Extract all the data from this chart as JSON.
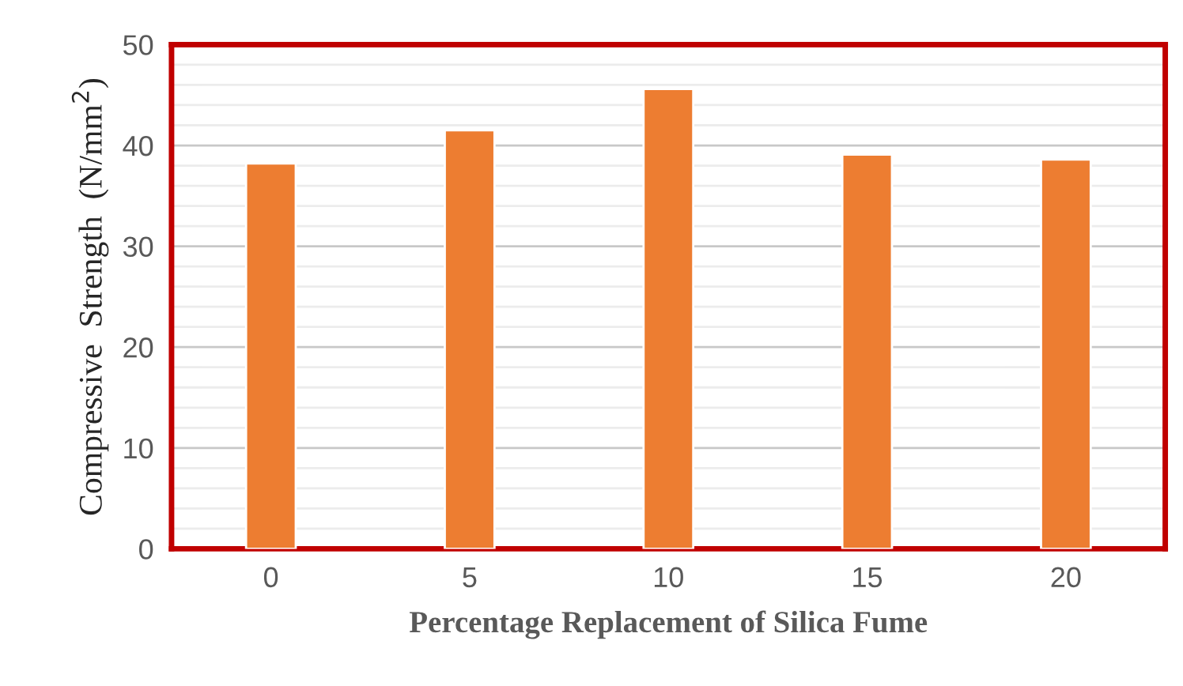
{
  "chart_data": {
    "type": "bar",
    "xlabel": "Percentage Replacement of Silica Fume",
    "ylabel": "Compressive  Strength  (N/mm$^{2}$)",
    "categories": [
      "0",
      "5",
      "10",
      "15",
      "20"
    ],
    "values": [
      38.2,
      41.5,
      45.6,
      39.1,
      38.6
    ],
    "color": "#ed7d31",
    "ylim": [
      0,
      50
    ],
    "yticks": [
      0,
      10,
      20,
      30,
      40,
      50
    ],
    "grid": "y"
  }
}
